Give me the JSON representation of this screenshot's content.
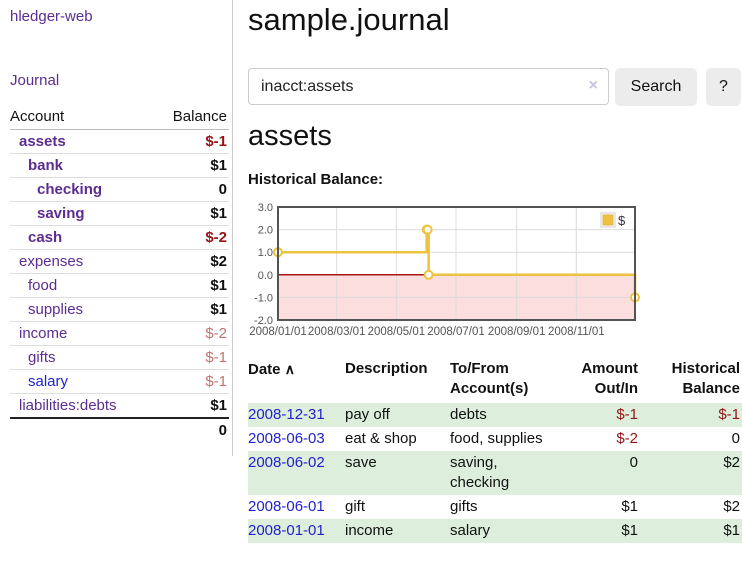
{
  "app": {
    "brand": "hledger-web",
    "nav_journal": "Journal"
  },
  "sidebar": {
    "header": {
      "account": "Account",
      "balance": "Balance"
    },
    "accounts": [
      {
        "name": "assets",
        "indent": 1,
        "bold": true,
        "balance": "$-1",
        "balance_style": "neg"
      },
      {
        "name": "bank",
        "indent": 2,
        "bold": true,
        "balance": "$1",
        "balance_style": "pos"
      },
      {
        "name": "checking",
        "indent": 3,
        "bold": true,
        "balance": "0",
        "balance_style": "pos"
      },
      {
        "name": "saving",
        "indent": 3,
        "bold": true,
        "balance": "$1",
        "balance_style": "pos"
      },
      {
        "name": "cash",
        "indent": 2,
        "bold": true,
        "balance": "$-2",
        "balance_style": "neg"
      },
      {
        "name": "expenses",
        "indent": 1,
        "bold": false,
        "balance": "$2",
        "balance_style": "pos"
      },
      {
        "name": "food",
        "indent": 2,
        "bold": false,
        "balance": "$1",
        "balance_style": "pos"
      },
      {
        "name": "supplies",
        "indent": 2,
        "bold": false,
        "balance": "$1",
        "balance_style": "pos"
      },
      {
        "name": "income",
        "indent": 1,
        "bold": false,
        "balance": "$-2",
        "balance_style": "dimneg"
      },
      {
        "name": "gifts",
        "indent": 2,
        "bold": false,
        "balance": "$-1",
        "balance_style": "dimneg"
      },
      {
        "name": "salary",
        "indent": 2,
        "bold": false,
        "link_style": "unvisited",
        "balance": "$-1",
        "balance_style": "dimneg"
      },
      {
        "name": "liabilities:debts",
        "indent": 1,
        "bold": false,
        "balance": "$1",
        "balance_style": "pos"
      }
    ],
    "total": "0"
  },
  "header": {
    "title": "sample.journal"
  },
  "search": {
    "value": "inacct:assets",
    "clear_icon": "×",
    "button": "Search",
    "help_button": "?"
  },
  "main": {
    "account_title": "assets"
  },
  "chart_data": {
    "type": "line",
    "step": true,
    "title": "Historical Balance:",
    "legend": "$",
    "legend_position": "top-right",
    "series": [
      {
        "name": "$",
        "x": [
          "2008-01-01",
          "2008-06-01",
          "2008-06-02",
          "2008-06-03",
          "2008-12-31"
        ],
        "values": [
          1,
          2,
          2,
          0,
          -1
        ]
      }
    ],
    "xrange": [
      "2008-01-01",
      "2008-12-31"
    ],
    "ylim": [
      -2,
      3
    ],
    "yticks": [
      3,
      2,
      1,
      0,
      -1,
      -2
    ],
    "xtick_labels": [
      "2008/01/01",
      "2008/03/01",
      "2008/05/01",
      "2008/07/01",
      "2008/09/01",
      "2008/11/01"
    ],
    "grid": true,
    "negative_region_shaded": true
  },
  "register": {
    "columns": [
      "Date",
      "Description",
      "To/From Account(s)",
      "Amount Out/In",
      "Historical Balance"
    ],
    "sort_icon": "∧",
    "rows": [
      {
        "date": "2008-12-31",
        "description": "pay off",
        "accounts": "debts",
        "amount": "$-1",
        "amount_negative": true,
        "balance": "$-1",
        "balance_negative": true
      },
      {
        "date": "2008-06-03",
        "description": "eat & shop",
        "accounts": "food, supplies",
        "amount": "$-2",
        "amount_negative": true,
        "balance": "0",
        "balance_negative": false
      },
      {
        "date": "2008-06-02",
        "description": "save",
        "accounts": "saving, checking",
        "amount": "0",
        "amount_negative": false,
        "balance": "$2",
        "balance_negative": false
      },
      {
        "date": "2008-06-01",
        "description": "gift",
        "accounts": "gifts",
        "amount": "$1",
        "amount_negative": false,
        "balance": "$2",
        "balance_negative": false
      },
      {
        "date": "2008-01-01",
        "description": "income",
        "accounts": "salary",
        "amount": "$1",
        "amount_negative": false,
        "balance": "$1",
        "balance_negative": false
      }
    ]
  },
  "colors": {
    "link_purple": "#5b2d91",
    "link_blue": "#2222cc",
    "negative_red": "#941414",
    "dim_negative_red": "#bf7373",
    "row_stripe_green": "#ddeedd",
    "chart_line_gold": "#edc240",
    "chart_negative_fill": "#fcdede",
    "chart_zero_line": "#a81414",
    "chart_border": "#545454",
    "grid_line": "#dcdcdc",
    "axis_text": "#545454",
    "button_bg": "#ececec",
    "divider": "#cccccc"
  }
}
